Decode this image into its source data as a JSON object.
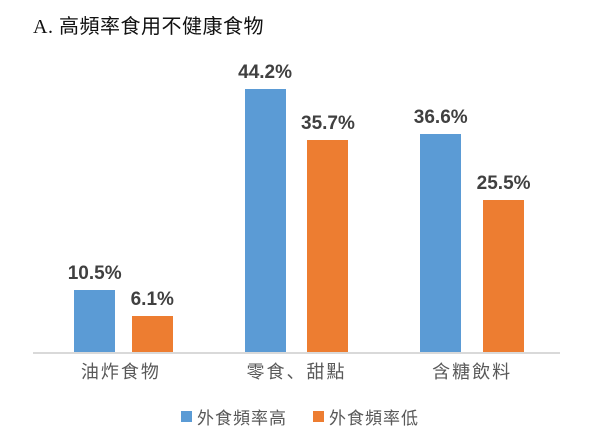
{
  "title": "A. 高頻率食用不健康食物",
  "colors": {
    "series_high": "#5B9BD5",
    "series_low": "#ED7D31",
    "data_label_text": "#404040",
    "axis_text": "#595959",
    "axis_line": "#D9D9D9",
    "background": "#FFFFFF"
  },
  "chart_data": {
    "type": "bar",
    "title": "A. 高頻率食用不健康食物",
    "categories": [
      "油炸食物",
      "零食、甜點",
      "含糖飲料"
    ],
    "series": [
      {
        "name": "外食頻率高",
        "color": "#5B9BD5",
        "values": [
          10.5,
          44.2,
          36.6
        ],
        "labels": [
          "10.5%",
          "44.2%",
          "36.6%"
        ]
      },
      {
        "name": "外食頻率低",
        "color": "#ED7D31",
        "values": [
          6.1,
          35.7,
          25.5
        ],
        "labels": [
          "6.1%",
          "35.7%",
          "25.5%"
        ]
      }
    ],
    "unit": "%",
    "ylim": [
      0,
      50
    ],
    "grid": false,
    "y_axis_visible": false,
    "data_labels": true,
    "legend_position": "bottom"
  },
  "legend": {
    "items": [
      {
        "label": "外食頻率高",
        "color": "#5B9BD5"
      },
      {
        "label": "外食頻率低",
        "color": "#ED7D31"
      }
    ]
  }
}
